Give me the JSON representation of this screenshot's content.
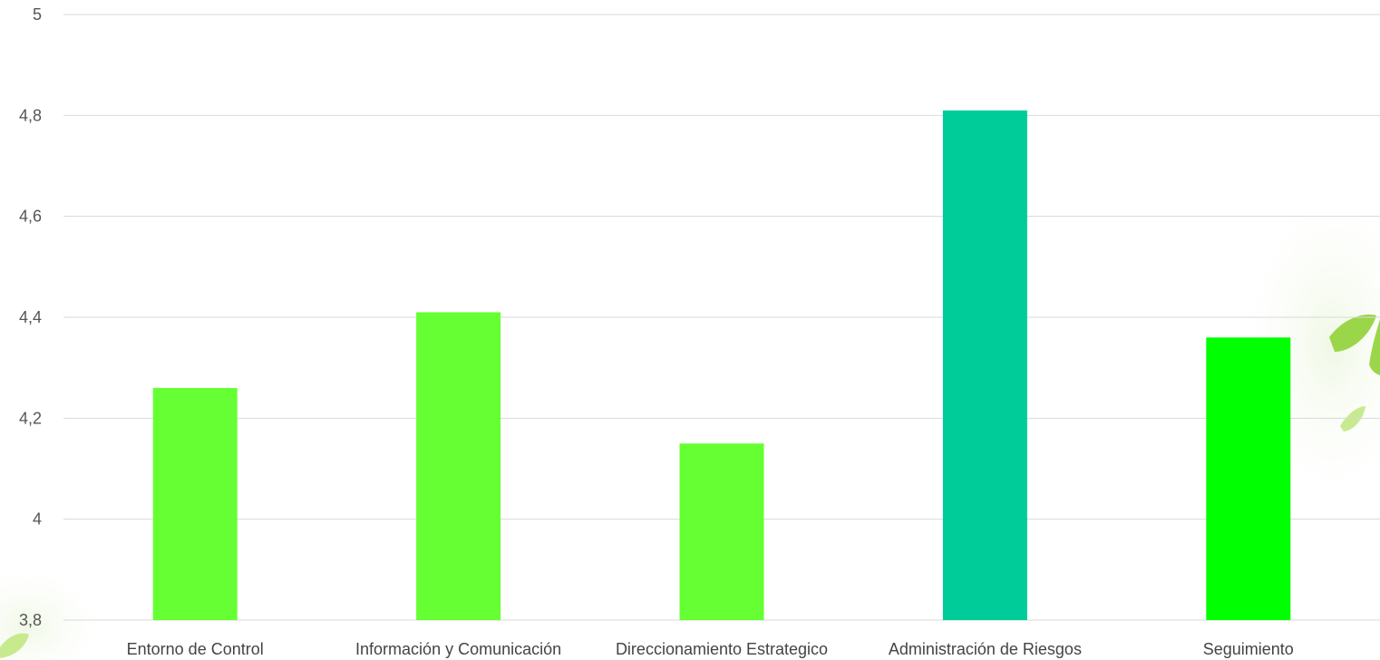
{
  "chart_data": {
    "type": "bar",
    "title": "",
    "xlabel": "",
    "ylabel": "",
    "ylim": [
      3.8,
      5
    ],
    "yticks": [
      3.8,
      4,
      4.2,
      4.4,
      4.6,
      4.8,
      5
    ],
    "ytick_labels": [
      "3,8",
      "4",
      "4,2",
      "4,4",
      "4,6",
      "4,8",
      "5"
    ],
    "grid": true,
    "legend": "none",
    "categories": [
      "Entorno de Control",
      "Información y Comunicación",
      "Direccionamiento Estrategico",
      "Administración de Riesgos",
      "Seguimiento"
    ],
    "values": [
      4.26,
      4.41,
      4.15,
      4.81,
      4.36
    ],
    "colors": [
      "#66ff33",
      "#66ff33",
      "#66ff33",
      "#00cc99",
      "#00ff00"
    ]
  },
  "background": {
    "leaf_colors": [
      "#9bd64a",
      "#c7ea8e",
      "#e3f3cf"
    ]
  }
}
